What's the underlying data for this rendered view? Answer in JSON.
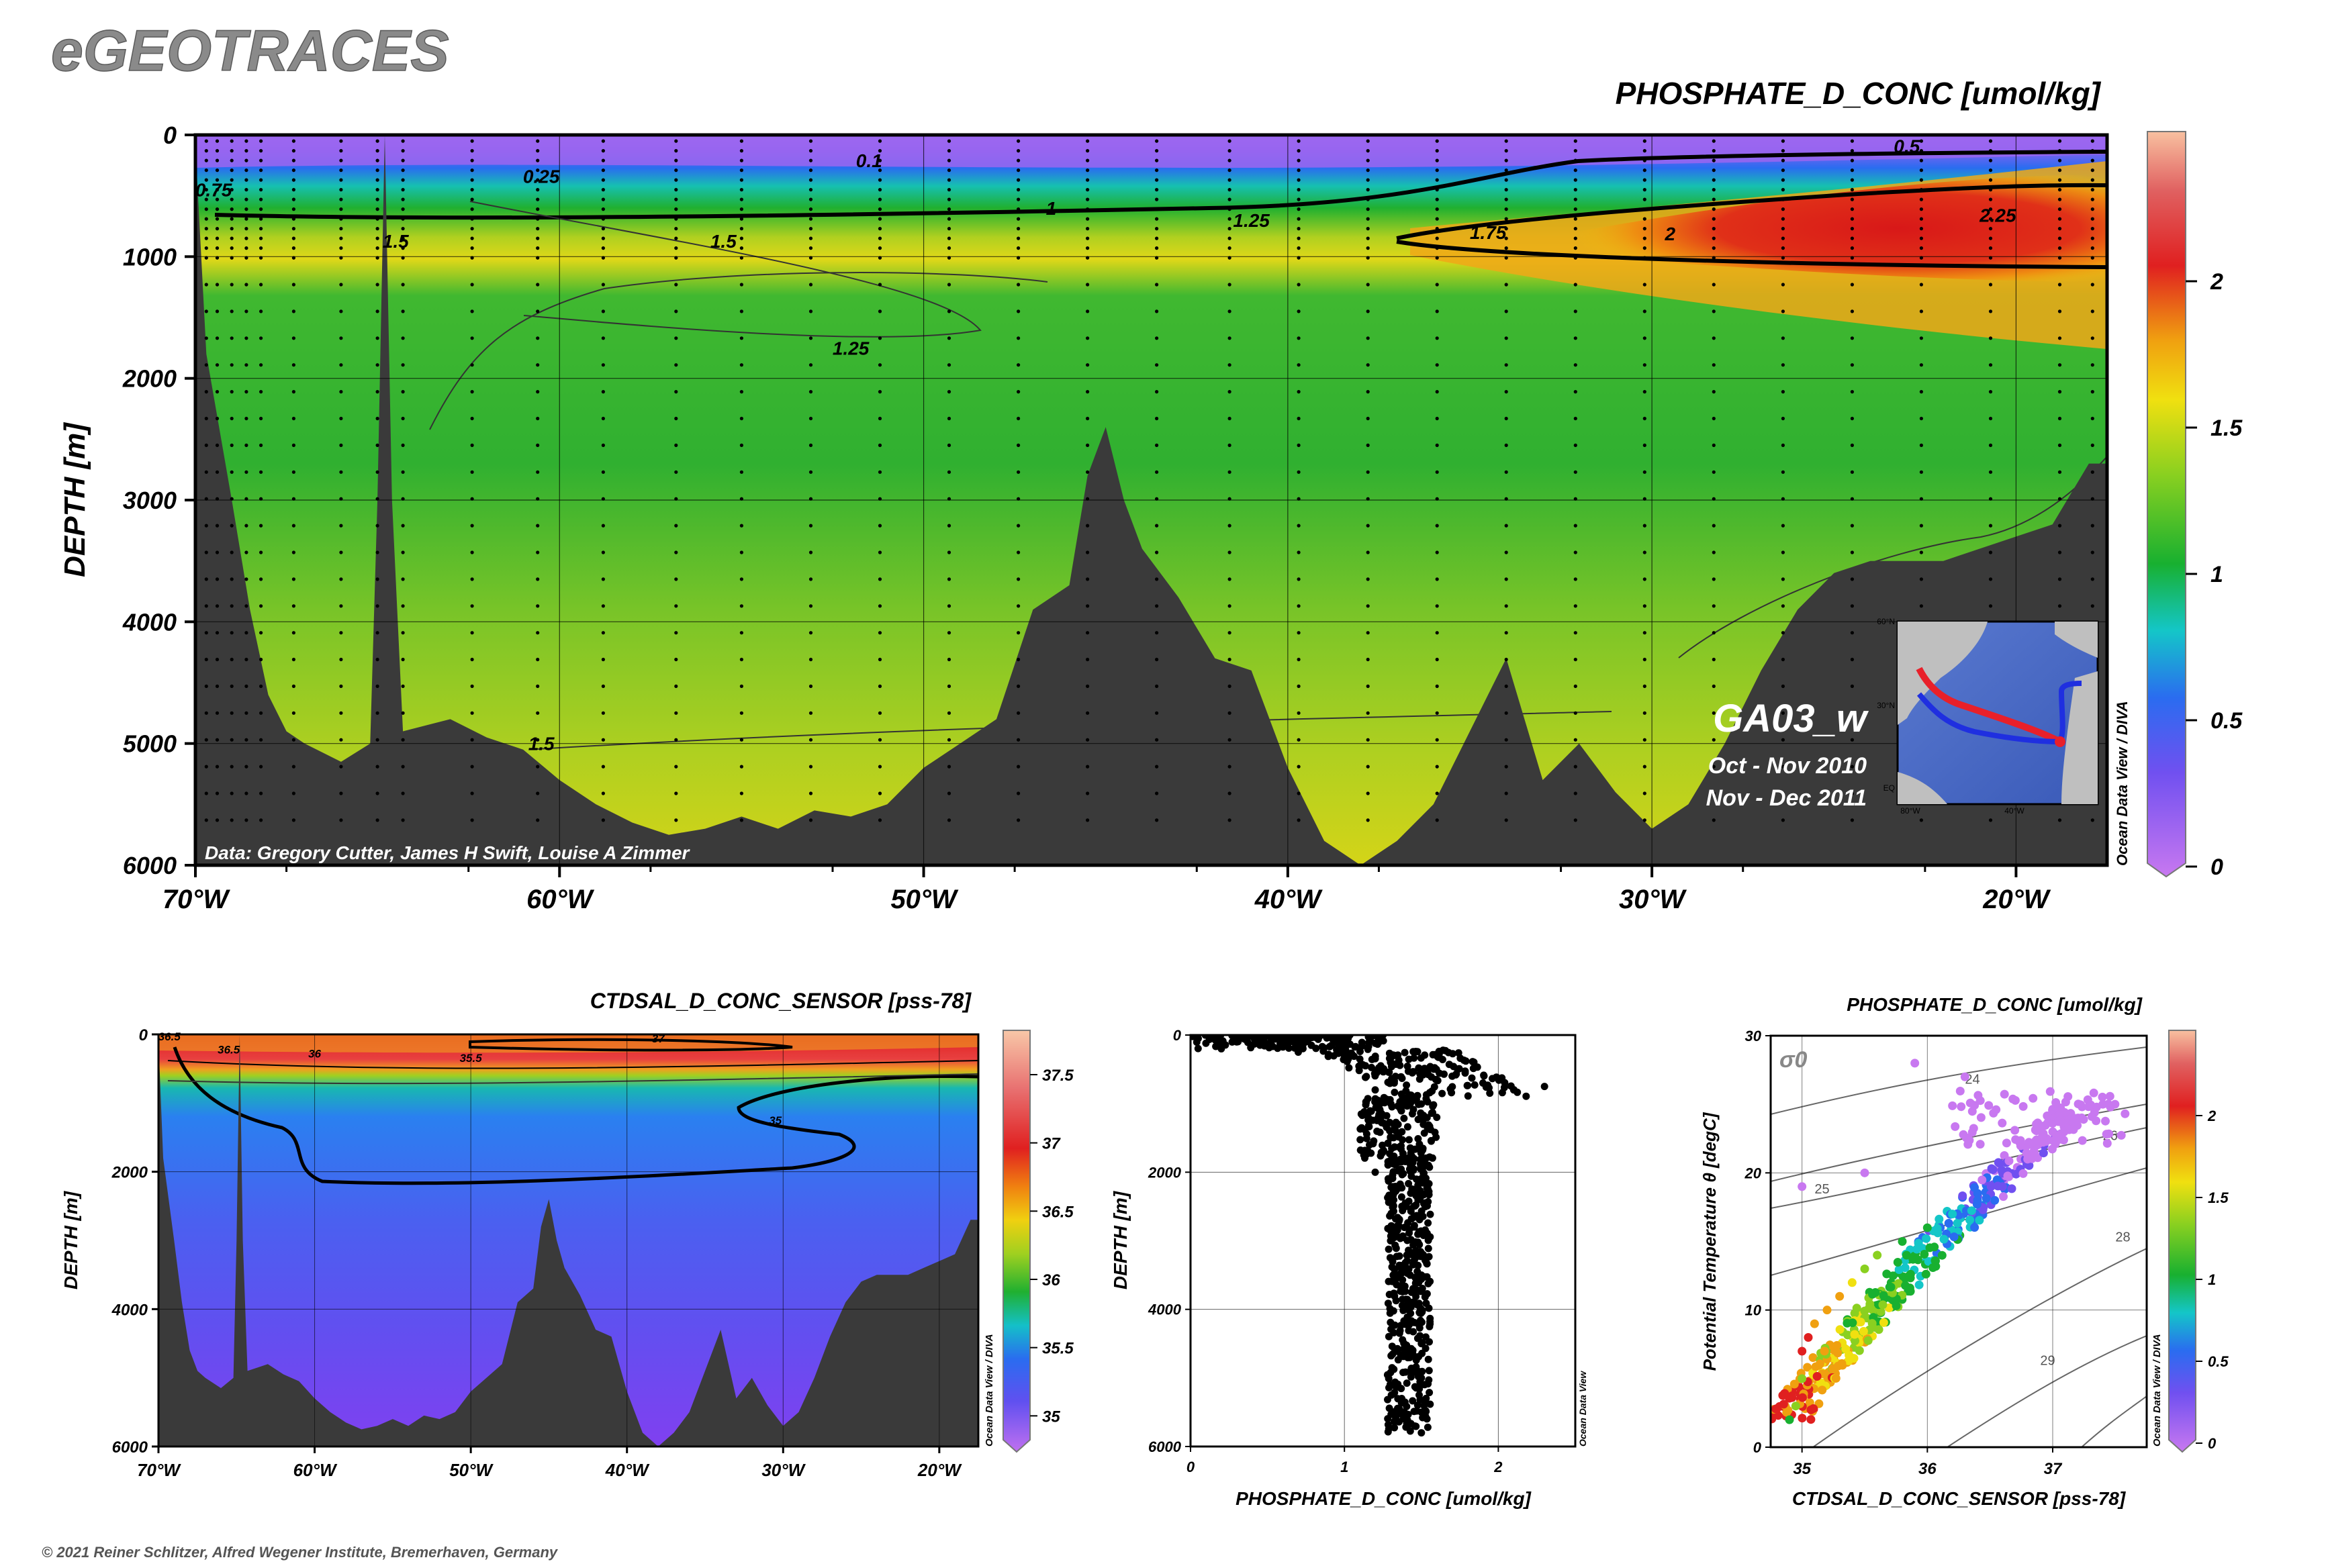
{
  "brand": "eGEOTRACES",
  "copyright": "© 2021 Reiner Schlitzer, Alfred Wegener Institute, Bremerhaven, Germany",
  "odv_credit": "Ocean Data View / DIVA",
  "odv_credit_short": "Ocean Data View",
  "colors": {
    "land": "#3a3a3a",
    "sample_dots": "#000000",
    "track_red": "#e8202a",
    "track_blue": "#1f2fe0"
  },
  "main_section": {
    "title": "PHOSPHATE_D_CONC [umol/kg]",
    "ylabel": "DEPTH [m]",
    "data_credit": "Data: Gregory Cutter, James H Swift, Louise A Zimmer",
    "cruise": "GA03_w",
    "dates": [
      "Oct - Nov 2010",
      "Nov - Dec 2011"
    ],
    "inset_map_labels": [
      "60°N",
      "30°N",
      "EQ",
      "80°W",
      "40°W"
    ]
  },
  "salinity_section": {
    "title": "CTDSAL_D_CONC_SENSOR [pss-78]",
    "ylabel": "DEPTH [m]"
  },
  "profile_plot": {
    "xlabel": "PHOSPHATE_D_CONC [umol/kg]",
    "ylabel": "DEPTH [m]"
  },
  "ts_plot": {
    "title": "PHOSPHATE_D_CONC [umol/kg]",
    "xlabel": "CTDSAL_D_CONC_SENSOR [pss-78]",
    "ylabel": "Potential Temperature θ [degC]",
    "sigma_label": "σ0"
  },
  "chart_data": [
    {
      "id": "phosphate-section",
      "type": "heatmap",
      "title": "PHOSPHATE_D_CONC [umol/kg]",
      "ylabel": "DEPTH [m]",
      "x_ticks": [
        "70°W",
        "60°W",
        "50°W",
        "40°W",
        "30°W",
        "20°W"
      ],
      "x_tick_values": [
        -70,
        -60,
        -50,
        -40,
        -30,
        -20
      ],
      "xlim": [
        -70,
        -17.5
      ],
      "y_ticks": [
        0,
        1000,
        2000,
        3000,
        4000,
        5000,
        6000
      ],
      "ylim": [
        0,
        6000
      ],
      "colorbar": {
        "ticks": [
          0,
          0.5,
          1,
          1.5,
          2
        ],
        "range": [
          0,
          2.5
        ]
      },
      "contour_labels": [
        "0.1",
        "0.25",
        "0.5",
        "0.75",
        "1",
        "1.25",
        "1.5",
        "1.5",
        "1.75",
        "2",
        "2.25",
        "1.25",
        "1.5"
      ],
      "station_longitudes": [
        -69.7,
        -69.4,
        -69,
        -68.6,
        -68.2,
        -67.3,
        -66,
        -65,
        -64.3,
        -62.4,
        -60.6,
        -58.8,
        -56.8,
        -55,
        -53.1,
        -51.2,
        -49.3,
        -47.4,
        -45.5,
        -43.6,
        -41.6,
        -39.7,
        -37.8,
        -35.9,
        -34,
        -32.1,
        -30.2,
        -28.3,
        -26.4,
        -24.5,
        -22.6,
        -20.7,
        -18.8,
        -17.9
      ],
      "bathymetry_depth": [
        [
          -70,
          90
        ],
        [
          -69.7,
          1800
        ],
        [
          -69,
          3000
        ],
        [
          -68.5,
          3900
        ],
        [
          -68,
          4600
        ],
        [
          -67.5,
          4900
        ],
        [
          -67,
          5000
        ],
        [
          -66,
          5150
        ],
        [
          -65.2,
          5000
        ],
        [
          -65,
          3000
        ],
        [
          -64.8,
          0
        ],
        [
          -64.6,
          3000
        ],
        [
          -64.3,
          4900
        ],
        [
          -63,
          4800
        ],
        [
          -62,
          4950
        ],
        [
          -61,
          5050
        ],
        [
          -60,
          5300
        ],
        [
          -59,
          5500
        ],
        [
          -58,
          5650
        ],
        [
          -57,
          5750
        ],
        [
          -56,
          5700
        ],
        [
          -55,
          5600
        ],
        [
          -54,
          5700
        ],
        [
          -53,
          5550
        ],
        [
          -52,
          5600
        ],
        [
          -51,
          5500
        ],
        [
          -50,
          5200
        ],
        [
          -49,
          5000
        ],
        [
          -48,
          4800
        ],
        [
          -47,
          3900
        ],
        [
          -46,
          3700
        ],
        [
          -45.5,
          2800
        ],
        [
          -45,
          2400
        ],
        [
          -44.5,
          3000
        ],
        [
          -44,
          3400
        ],
        [
          -43,
          3800
        ],
        [
          -42,
          4300
        ],
        [
          -41,
          4400
        ],
        [
          -40,
          5200
        ],
        [
          -39,
          5800
        ],
        [
          -38,
          6000
        ],
        [
          -37,
          5800
        ],
        [
          -36,
          5500
        ],
        [
          -35,
          4900
        ],
        [
          -34,
          4300
        ],
        [
          -33,
          5300
        ],
        [
          -32,
          5000
        ],
        [
          -31,
          5400
        ],
        [
          -30,
          5700
        ],
        [
          -29,
          5500
        ],
        [
          -28,
          5000
        ],
        [
          -27,
          4400
        ],
        [
          -26,
          3900
        ],
        [
          -25,
          3600
        ],
        [
          -24,
          3500
        ],
        [
          -23,
          3500
        ],
        [
          -22,
          3500
        ],
        [
          -21,
          3400
        ],
        [
          -20,
          3300
        ],
        [
          -19,
          3200
        ],
        [
          -18,
          2700
        ],
        [
          -17.5,
          2700
        ]
      ]
    },
    {
      "id": "salinity-section",
      "type": "heatmap",
      "title": "CTDSAL_D_CONC_SENSOR [pss-78]",
      "ylabel": "DEPTH [m]",
      "x_ticks": [
        "70°W",
        "60°W",
        "50°W",
        "40°W",
        "30°W",
        "20°W"
      ],
      "x_tick_values": [
        -70,
        -60,
        -50,
        -40,
        -30,
        -20
      ],
      "xlim": [
        -70,
        -17.5
      ],
      "y_ticks": [
        0,
        2000,
        4000,
        6000
      ],
      "ylim": [
        0,
        6000
      ],
      "colorbar": {
        "ticks": [
          35,
          35.5,
          36,
          36.5,
          37,
          37.5
        ],
        "range": [
          34.8,
          37.8
        ]
      },
      "contour_labels": [
        "36.5",
        "36.5",
        "37",
        "36",
        "35.5",
        "35"
      ]
    },
    {
      "id": "phosphate-profile",
      "type": "scatter",
      "xlabel": "PHOSPHATE_D_CONC [umol/kg]",
      "ylabel": "DEPTH [m]",
      "x_ticks": [
        0,
        1,
        2
      ],
      "xlim": [
        0,
        2.5
      ],
      "y_ticks": [
        0,
        2000,
        4000,
        6000
      ],
      "ylim": [
        0,
        6000
      ],
      "points_approx": [
        [
          0.05,
          50
        ],
        [
          0.1,
          120
        ],
        [
          0.2,
          200
        ],
        [
          0.3,
          100
        ],
        [
          0.5,
          150
        ],
        [
          0.7,
          250
        ],
        [
          0.9,
          300
        ],
        [
          1.1,
          350
        ],
        [
          1.3,
          400
        ],
        [
          1.5,
          500
        ],
        [
          1.7,
          600
        ],
        [
          1.9,
          700
        ],
        [
          2.1,
          800
        ],
        [
          2.3,
          750
        ],
        [
          1.2,
          800
        ],
        [
          1.4,
          1000
        ],
        [
          1.6,
          1200
        ],
        [
          1.3,
          1500
        ],
        [
          1.5,
          1800
        ],
        [
          1.2,
          2000
        ],
        [
          1.4,
          2500
        ],
        [
          1.3,
          3000
        ],
        [
          1.5,
          3500
        ],
        [
          1.4,
          4000
        ],
        [
          1.5,
          4500
        ],
        [
          1.5,
          5000
        ],
        [
          1.5,
          5500
        ],
        [
          1.5,
          5800
        ]
      ]
    },
    {
      "id": "ts-diagram",
      "type": "scatter",
      "title": "PHOSPHATE_D_CONC [umol/kg]",
      "xlabel": "CTDSAL_D_CONC_SENSOR [pss-78]",
      "ylabel": "Potential Temperature θ [degC]",
      "x_ticks": [
        35,
        36,
        37
      ],
      "xlim": [
        34.75,
        37.75
      ],
      "y_ticks": [
        0,
        10,
        20,
        30
      ],
      "ylim": [
        0,
        30
      ],
      "isopycnal_labels": [
        "24",
        "25",
        "26",
        "28",
        "29"
      ],
      "colorbar": {
        "ticks": [
          0,
          0.5,
          1,
          1.5,
          2
        ],
        "range": [
          0,
          2.5
        ]
      },
      "points_approx": [
        [
          34.9,
          2,
          1.3
        ],
        [
          34.95,
          3,
          1.4
        ],
        [
          35.0,
          5,
          1.5
        ],
        [
          35.0,
          7,
          2.1
        ],
        [
          35.05,
          8,
          2.2
        ],
        [
          35.1,
          9,
          1.9
        ],
        [
          35.2,
          10,
          2.0
        ],
        [
          35.3,
          11,
          1.8
        ],
        [
          35.4,
          12,
          1.7
        ],
        [
          35.5,
          13,
          1.5
        ],
        [
          35.6,
          14,
          1.4
        ],
        [
          35.8,
          15,
          1.3
        ],
        [
          36.0,
          16,
          1.1
        ],
        [
          36.2,
          17,
          0.9
        ],
        [
          36.4,
          18,
          0.6
        ],
        [
          36.6,
          19,
          0.4
        ],
        [
          36.8,
          21,
          0.2
        ],
        [
          37.0,
          23,
          0.1
        ],
        [
          37.2,
          24,
          0.1
        ],
        [
          37.4,
          25,
          0.1
        ],
        [
          36.3,
          27,
          0.05
        ],
        [
          35.9,
          28,
          0.05
        ],
        [
          35.0,
          19,
          0.1
        ],
        [
          35.5,
          20,
          0.2
        ]
      ]
    }
  ]
}
